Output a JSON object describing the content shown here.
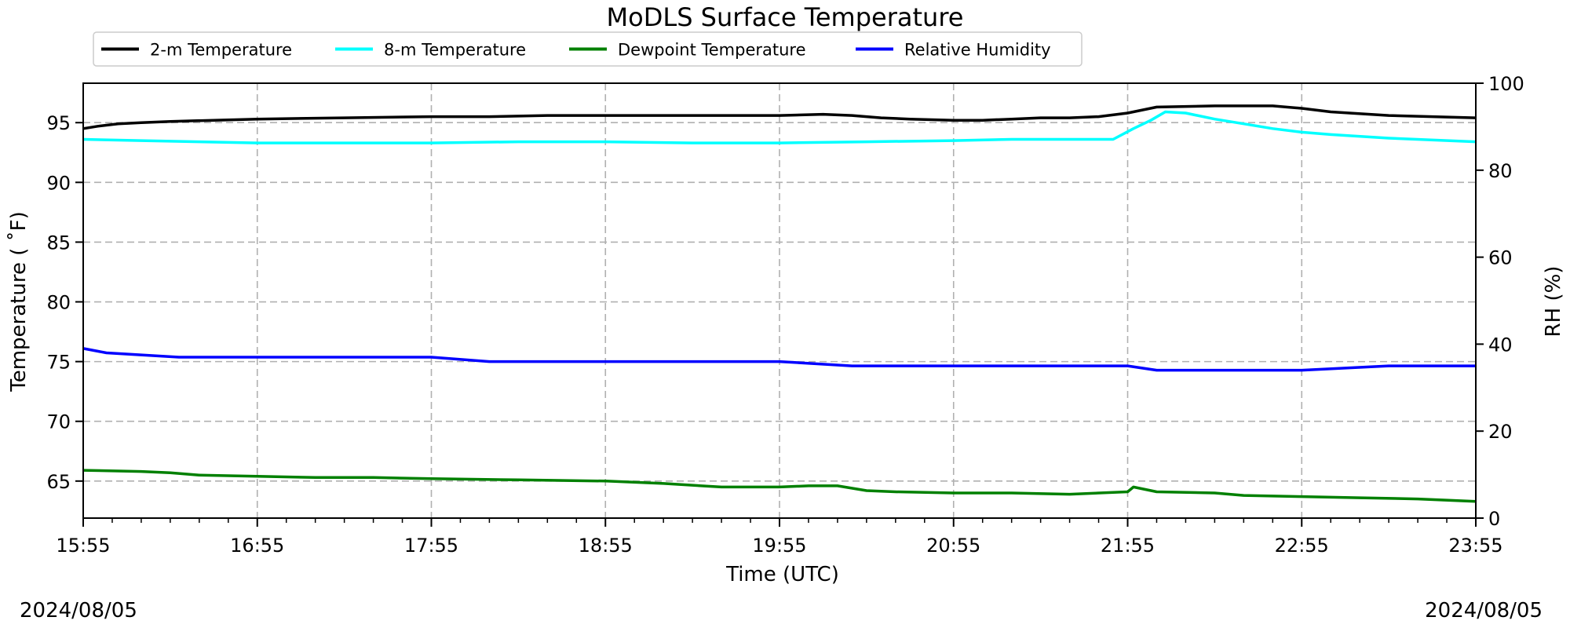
{
  "chart_data": {
    "type": "line",
    "title": "MoDLS Surface Temperature",
    "xlabel": "Time (UTC)",
    "ylabel_left": "Temperature ($^\\circ$F)",
    "ylabel_left_display": "Temperature ( ˚F)",
    "ylabel_right": "RH (%)",
    "xlim": [
      0,
      480
    ],
    "x_unit": "minutes after 15:55 UTC",
    "x_ticks": [
      {
        "x": 0,
        "label": "15:55"
      },
      {
        "x": 60,
        "label": "16:55"
      },
      {
        "x": 120,
        "label": "17:55"
      },
      {
        "x": 180,
        "label": "18:55"
      },
      {
        "x": 240,
        "label": "19:55"
      },
      {
        "x": 300,
        "label": "20:55"
      },
      {
        "x": 360,
        "label": "21:55"
      },
      {
        "x": 420,
        "label": "22:55"
      },
      {
        "x": 480,
        "label": "23:55"
      }
    ],
    "ylim_left": [
      61.9,
      98.3
    ],
    "y_ticks_left": [
      65,
      70,
      75,
      80,
      85,
      90,
      95
    ],
    "ylim_right": [
      0,
      100
    ],
    "y_ticks_right": [
      0,
      20,
      40,
      60,
      80,
      100
    ],
    "grid": true,
    "legend_position": "top",
    "date_left": "2024/08/05",
    "date_right": "2024/08/05",
    "series": [
      {
        "name": "2-m Temperature",
        "color": "#000000",
        "axis": "left",
        "x": [
          0,
          5,
          12,
          20,
          30,
          45,
          60,
          90,
          120,
          140,
          160,
          200,
          240,
          255,
          265,
          275,
          285,
          300,
          310,
          320,
          330,
          340,
          350,
          360,
          370,
          390,
          410,
          420,
          430,
          450,
          465,
          480
        ],
        "values": [
          94.5,
          94.7,
          94.9,
          95.0,
          95.1,
          95.2,
          95.3,
          95.4,
          95.5,
          95.5,
          95.6,
          95.6,
          95.6,
          95.7,
          95.6,
          95.4,
          95.3,
          95.2,
          95.2,
          95.3,
          95.4,
          95.4,
          95.5,
          95.8,
          96.3,
          96.4,
          96.4,
          96.2,
          95.9,
          95.6,
          95.5,
          95.4
        ]
      },
      {
        "name": "8-m Temperature",
        "color": "#00ffff",
        "axis": "left",
        "x": [
          0,
          20,
          40,
          60,
          80,
          100,
          120,
          150,
          180,
          210,
          240,
          270,
          300,
          320,
          340,
          355,
          362,
          368,
          373,
          380,
          390,
          400,
          410,
          420,
          430,
          450,
          480
        ],
        "values": [
          93.6,
          93.5,
          93.4,
          93.3,
          93.3,
          93.3,
          93.3,
          93.4,
          93.4,
          93.3,
          93.3,
          93.4,
          93.5,
          93.6,
          93.6,
          93.6,
          94.5,
          95.2,
          95.9,
          95.8,
          95.3,
          94.9,
          94.5,
          94.2,
          94.0,
          93.7,
          93.4
        ]
      },
      {
        "name": "Dewpoint Temperature",
        "color": "#008000",
        "axis": "left",
        "x": [
          0,
          20,
          30,
          40,
          60,
          80,
          100,
          120,
          150,
          180,
          200,
          220,
          240,
          250,
          260,
          270,
          280,
          300,
          320,
          340,
          360,
          362,
          370,
          390,
          400,
          420,
          440,
          460,
          480
        ],
        "values": [
          65.9,
          65.8,
          65.7,
          65.5,
          65.4,
          65.3,
          65.3,
          65.2,
          65.1,
          65.0,
          64.8,
          64.5,
          64.5,
          64.6,
          64.6,
          64.2,
          64.1,
          64.0,
          64.0,
          63.9,
          64.1,
          64.5,
          64.1,
          64.0,
          63.8,
          63.7,
          63.6,
          63.5,
          63.3
        ]
      },
      {
        "name": "Relative Humidity",
        "color": "#0000ff",
        "axis": "right",
        "x": [
          0,
          8,
          33,
          60,
          120,
          140,
          165,
          200,
          240,
          265,
          290,
          310,
          330,
          360,
          370,
          390,
          420,
          450,
          480
        ],
        "values": [
          39.0,
          38.0,
          37.0,
          37.0,
          37.0,
          36.0,
          36.0,
          36.0,
          36.0,
          35.0,
          35.0,
          35.0,
          35.0,
          35.0,
          34.0,
          34.0,
          34.0,
          35.0,
          35.0
        ]
      }
    ]
  }
}
